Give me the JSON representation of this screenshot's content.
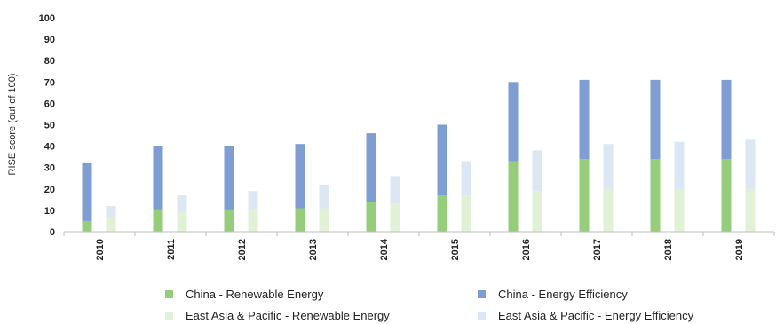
{
  "chart_data": {
    "type": "bar",
    "stacked": true,
    "title": "",
    "xlabel": "",
    "ylabel": "RISE score (out of 100)",
    "ylim": [
      0,
      100
    ],
    "yticks": [
      0,
      10,
      20,
      30,
      40,
      50,
      60,
      70,
      80,
      90,
      100
    ],
    "grid": false,
    "legend_position": "bottom",
    "categories": [
      "2010",
      "2011",
      "2012",
      "2013",
      "2014",
      "2015",
      "2016",
      "2017",
      "2018",
      "2019"
    ],
    "groups": [
      {
        "name": "China",
        "stack": [
          {
            "name": "China - Renewable Energy",
            "color": "#96CD7A",
            "values": [
              5,
              10,
              10,
              11,
              14,
              17,
              33,
              34,
              34,
              34
            ]
          },
          {
            "name": "China - Energy Efficiency",
            "color": "#7E9DD2",
            "values": [
              27,
              30,
              30,
              30,
              32,
              33,
              37,
              37,
              37,
              37
            ]
          }
        ]
      },
      {
        "name": "East Asia & Pacific",
        "stack": [
          {
            "name": "East Asia & Pacific - Renewable Energy",
            "color": "#E1F1D6",
            "values": [
              7,
              9,
              10,
              11,
              13,
              17,
              19,
              20,
              20,
              20
            ]
          },
          {
            "name": "East Asia & Pacific - Energy Efficiency",
            "color": "#DCE7F4",
            "values": [
              5,
              8,
              9,
              11,
              13,
              16,
              19,
              21,
              22,
              23
            ]
          }
        ]
      }
    ],
    "legend": [
      "China - Renewable Energy",
      "China - Energy Efficiency",
      "East Asia & Pacific - Renewable Energy",
      "East Asia & Pacific - Energy Efficiency"
    ]
  }
}
